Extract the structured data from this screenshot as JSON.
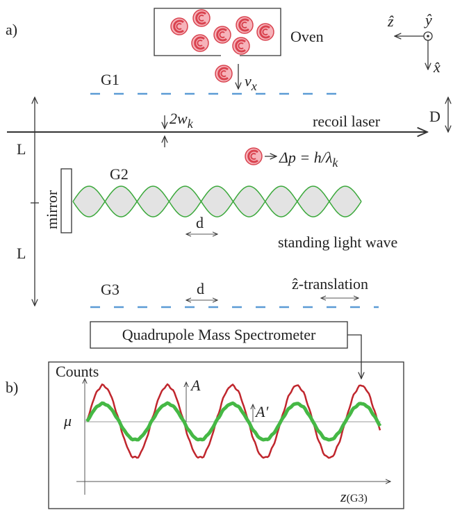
{
  "panel_a": {
    "label": "a)",
    "oven": "Oven",
    "axes": {
      "z": "ẑ",
      "y": "ŷ",
      "x": "x̂"
    },
    "velocity": {
      "symbol": "v",
      "sub": "x"
    },
    "gratings": {
      "g1": "G1",
      "g2": "G2",
      "g3": "G3"
    },
    "beam_waist": {
      "symbol": "2w",
      "sub": "k"
    },
    "laser": "recoil laser",
    "spacing": "D",
    "length_upper": "L",
    "length_lower": "L",
    "momentum": {
      "text": "Δp = h/λ",
      "sub": "k"
    },
    "mirror": "mirror",
    "period_g2": "d",
    "period_g3": "d",
    "standing_wave": "standing light wave",
    "translation": "ẑ-translation",
    "detector": "Quadrupole Mass Spectrometer"
  },
  "panel_b": {
    "label": "b)",
    "y_axis": "Counts",
    "mean": "μ",
    "amplitude": "A",
    "amplitude_prime": "A′",
    "x_axis": {
      "symbol": "z",
      "sub": "(G3)"
    }
  }
}
